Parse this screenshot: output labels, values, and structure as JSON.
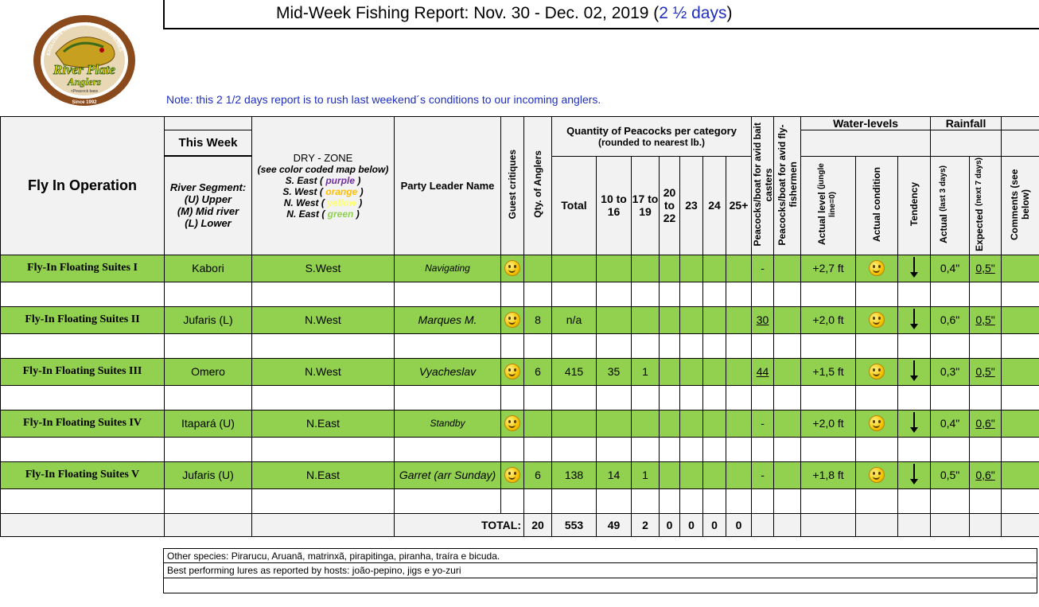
{
  "header": {
    "title_main": "Mid-Week Fishing Report: Nov. 30 - Dec. 02, 2019 (",
    "title_days": "2 ½ days",
    "title_close": ")",
    "note": "Note:  this 2 1/2 days report is to rush last weekend´s conditions to our incoming anglers."
  },
  "logo": {
    "top_text": "EXCLUSIVE AMAZON PRIVATE FISHERIES",
    "brand_line1": "River Plate",
    "brand_line2": "Anglers",
    "tagline": "<Peacock bass",
    "since": "Since 1992",
    "ring_color": "#8b4a1c",
    "brand_color": "#f2e600"
  },
  "columns": {
    "operation": "Fly In Operation",
    "this_week": "This Week",
    "river_segment_1": "River Segment:",
    "river_segment_2": "(U) Upper",
    "river_segment_3": "(M) Mid river",
    "river_segment_4": "(L) Lower",
    "dry_zone": "DRY - ZONE",
    "dry_zone_sub": "(see color coded map below)",
    "zone_se_label": "S. East (",
    "zone_se_color": "purple",
    "zone_sw_label": "S. West (",
    "zone_sw_color": "orange",
    "zone_nw_label": "N. West (",
    "zone_nw_color": "yellow",
    "zone_ne_label": "N. East (",
    "zone_ne_color": "green",
    "zone_close": ")",
    "party_leader": "Party Leader Name",
    "guest_critiques": "Guest critiques",
    "qty_anglers": "Qty. of Anglers",
    "quantity_title": "Quantity of Peacocks per category",
    "quantity_sub": "(rounded to nearest lb.)",
    "total": "Total",
    "cat_10_16": "10 to 16",
    "cat_17_19": "17 to 19",
    "cat_20_22": "20 to 22",
    "cat_23": "23",
    "cat_24": "24",
    "cat_25": "25+",
    "bait_casters": "Peacocks/boat for avid bait casters",
    "fly_fishermen": "Peacocks/boat for avid fly-fishermen",
    "water_levels": "Water-levels",
    "actual_level": "Actual level",
    "actual_level_sub": "(jungle line=0)",
    "actual_condition": "Actual condition",
    "tendency": "Tendency",
    "rainfall": "Rainfall",
    "rain_actual": "Actual",
    "rain_actual_sub": "(last 3 days)",
    "rain_expected": "Expected",
    "rain_expected_sub": "(next 7 days)",
    "comments": "Comments",
    "comments_sub": "(see below)"
  },
  "rows": [
    {
      "suite": "Fly-In Floating Suites I",
      "segment": "Kabori",
      "zone": "S.West",
      "leader": "Navigating",
      "anglers": "",
      "total": "",
      "c10": "",
      "c17": "",
      "c20": "",
      "c23": "",
      "c24": "",
      "c25": "",
      "bait": "-",
      "fly": "",
      "level": "+2,7 ft",
      "rain_actual": "0,4\"",
      "rain_expected": "0,5\""
    },
    {
      "suite": "Fly-In Floating Suites II",
      "segment": "Jufaris (L)",
      "zone": "N.West",
      "leader": "Marques M.",
      "anglers": "8",
      "total": "n/a",
      "c10": "",
      "c17": "",
      "c20": "",
      "c23": "",
      "c24": "",
      "c25": "",
      "bait": "30",
      "fly": "",
      "level": "+2,0 ft",
      "rain_actual": "0,6\"",
      "rain_expected": "0,5\""
    },
    {
      "suite": "Fly-In Floating Suites III",
      "segment": "Omero",
      "zone": "N.West",
      "leader": "Vyacheslav",
      "anglers": "6",
      "total": "415",
      "c10": "35",
      "c17": "1",
      "c20": "",
      "c23": "",
      "c24": "",
      "c25": "",
      "bait": "44",
      "fly": "",
      "level": "+1,5 ft",
      "rain_actual": "0,3\"",
      "rain_expected": "0,5\""
    },
    {
      "suite": "Fly-In Floating Suites IV",
      "segment": "Itapará (U)",
      "zone": "N.East",
      "leader": "Standby",
      "anglers": "",
      "total": "",
      "c10": "",
      "c17": "",
      "c20": "",
      "c23": "",
      "c24": "",
      "c25": "",
      "bait": "-",
      "fly": "",
      "level": "+2,0 ft",
      "rain_actual": "0,4\"",
      "rain_expected": "0,6\""
    },
    {
      "suite": "Fly-In Floating Suites V",
      "segment": "Jufaris (U)",
      "zone": "N.East",
      "leader": "Garret (arr Sunday)",
      "anglers": "6",
      "total": "138",
      "c10": "14",
      "c17": "1",
      "c20": "",
      "c23": "",
      "c24": "",
      "c25": "",
      "bait": "-",
      "fly": "",
      "level": "+1,8 ft",
      "rain_actual": "0,5\"",
      "rain_expected": "0,6\""
    }
  ],
  "totals": {
    "label": "TOTAL:",
    "anglers": "20",
    "total": "553",
    "c10": "49",
    "c17": "2",
    "c20": "0",
    "c23": "0",
    "c24": "0",
    "c25": "0"
  },
  "footer": {
    "other_species": "Other species: Pirarucu, Aruanã, matrinxã, pirapitinga, piranha, traíra e bicuda.",
    "lures": "Best performing lures as reported by hosts:  joão-pepino, jigs e yo-zuri"
  },
  "colors": {
    "row_green": "#92d050",
    "header_gray": "#f2f2f2",
    "title_blue": "#1f2fbf"
  },
  "icons": {
    "critique": "smiley-icon",
    "condition": "smiley-icon",
    "tendency": "arrow-down-icon"
  }
}
